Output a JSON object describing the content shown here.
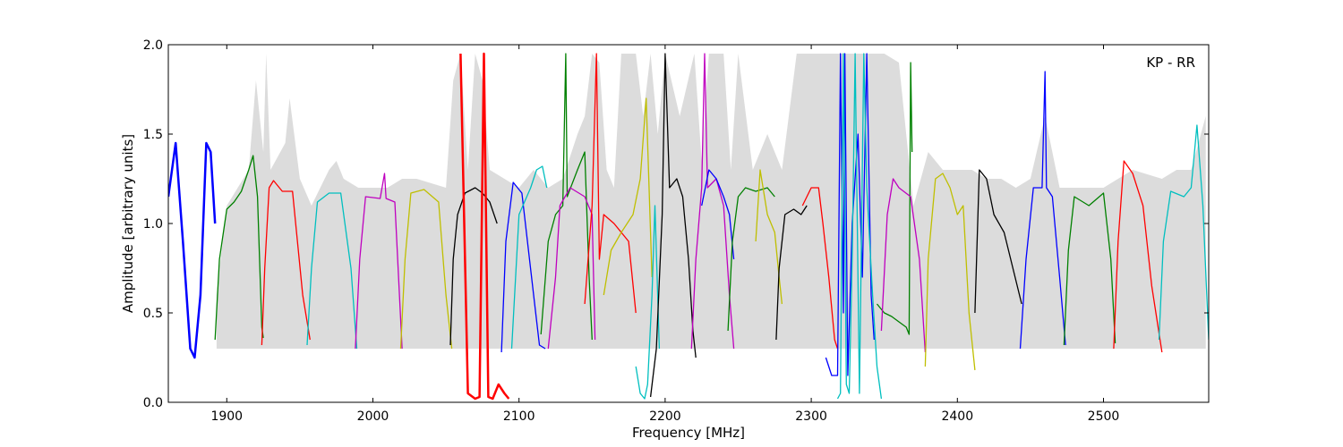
{
  "chart_data": {
    "type": "line",
    "title": "",
    "annotation": "KP - RR",
    "xlabel": "Frequency [MHz]",
    "ylabel": "Amplitude [arbitrary units]",
    "xlim": [
      1860,
      2572
    ],
    "ylim": [
      0.0,
      2.0
    ],
    "xticks": [
      1900,
      2000,
      2100,
      2200,
      2300,
      2400,
      2500
    ],
    "xtick_labels": [
      "1900",
      "2000",
      "2100",
      "2200",
      "2300",
      "2400",
      "2500"
    ],
    "yticks": [
      0.0,
      0.5,
      1.0,
      1.5,
      2.0
    ],
    "ytick_labels": [
      "0.0",
      "0.5",
      "1.0",
      "1.5",
      "2.0"
    ],
    "grid": false,
    "legend": "none",
    "background_band": {
      "color": "#c0c0c0",
      "x": [
        1893,
        1900,
        1915,
        1920,
        1925,
        1927,
        1930,
        1940,
        1943,
        1950,
        1958,
        1970,
        1975,
        1980,
        1990,
        2010,
        2020,
        2030,
        2050,
        2055,
        2060,
        2065,
        2070,
        2075,
        2080,
        2090,
        2100,
        2110,
        2120,
        2130,
        2140,
        2145,
        2150,
        2155,
        2160,
        2165,
        2170,
        2180,
        2185,
        2190,
        2195,
        2200,
        2210,
        2220,
        2225,
        2230,
        2240,
        2245,
        2250,
        2260,
        2270,
        2280,
        2290,
        2300,
        2310,
        2315,
        2320,
        2325,
        2330,
        2335,
        2340,
        2345,
        2350,
        2360,
        2370,
        2380,
        2390,
        2400,
        2410,
        2420,
        2430,
        2440,
        2450,
        2460,
        2470,
        2480,
        2500,
        2520,
        2540,
        2550,
        2560,
        2570
      ],
      "y": [
        0.6,
        1.1,
        1.3,
        1.8,
        1.4,
        1.95,
        1.3,
        1.45,
        1.7,
        1.25,
        1.1,
        1.3,
        1.35,
        1.25,
        1.2,
        1.2,
        1.25,
        1.25,
        1.2,
        1.8,
        1.95,
        1.3,
        1.95,
        1.8,
        1.3,
        1.25,
        1.2,
        1.3,
        1.2,
        1.25,
        1.5,
        1.6,
        1.95,
        1.9,
        1.3,
        1.2,
        1.95,
        1.95,
        1.6,
        1.95,
        1.5,
        1.95,
        1.6,
        1.95,
        1.35,
        1.95,
        1.95,
        1.3,
        1.95,
        1.3,
        1.5,
        1.3,
        1.95,
        1.95,
        1.95,
        1.95,
        1.95,
        1.95,
        1.95,
        1.95,
        1.95,
        1.95,
        1.95,
        1.9,
        1.1,
        1.4,
        1.3,
        1.3,
        1.3,
        1.25,
        1.25,
        1.2,
        1.25,
        1.6,
        1.2,
        1.2,
        1.2,
        1.3,
        1.25,
        1.3,
        1.3,
        1.6
      ]
    },
    "series": [
      {
        "color": "#0000ff",
        "x": [
          1860,
          1865,
          1870,
          1875,
          1878,
          1882,
          1886,
          1889,
          1892
        ],
        "y": [
          1.15,
          1.45,
          0.9,
          0.3,
          0.25,
          0.6,
          1.45,
          1.4,
          1.0
        ]
      },
      {
        "color": "#008000",
        "x": [
          1892,
          1895,
          1900,
          1905,
          1910,
          1915,
          1918,
          1921,
          1924,
          1925
        ],
        "y": [
          0.35,
          0.8,
          1.08,
          1.12,
          1.18,
          1.3,
          1.38,
          1.15,
          0.42,
          0.36
        ]
      },
      {
        "color": "#ff0000",
        "x": [
          1924,
          1926,
          1929,
          1932,
          1938,
          1945,
          1952,
          1957
        ],
        "y": [
          0.32,
          0.75,
          1.2,
          1.24,
          1.18,
          1.18,
          0.6,
          0.35
        ]
      },
      {
        "color": "#00bfbf",
        "x": [
          1955,
          1958,
          1962,
          1970,
          1978,
          1985,
          1989
        ],
        "y": [
          0.32,
          0.75,
          1.12,
          1.17,
          1.17,
          0.75,
          0.3
        ]
      },
      {
        "color": "#bf00bf",
        "x": [
          1988,
          1991,
          1995,
          2005,
          2008,
          2009,
          2015,
          2020
        ],
        "y": [
          0.3,
          0.8,
          1.15,
          1.14,
          1.28,
          1.14,
          1.12,
          0.3
        ]
      },
      {
        "color": "#bfbf00",
        "x": [
          2019,
          2022,
          2026,
          2035,
          2045,
          2050,
          2054
        ],
        "y": [
          0.3,
          0.8,
          1.17,
          1.19,
          1.12,
          0.6,
          0.3
        ]
      },
      {
        "color": "#000000",
        "x": [
          2053,
          2055,
          2058,
          2063,
          2070,
          2075,
          2080,
          2085
        ],
        "y": [
          0.32,
          0.8,
          1.05,
          1.17,
          1.2,
          1.17,
          1.12,
          1.0
        ]
      },
      {
        "color": "#ff0000",
        "x": [
          2060,
          2065,
          2070,
          2073,
          2076,
          2079,
          2082,
          2086,
          2090,
          2093
        ],
        "y": [
          1.95,
          0.05,
          0.02,
          0.03,
          1.95,
          0.03,
          0.02,
          0.1,
          0.05,
          0.02
        ]
      },
      {
        "color": "#0000ff",
        "x": [
          2088,
          2091,
          2096,
          2102,
          2110,
          2114,
          2118
        ],
        "y": [
          0.28,
          0.9,
          1.23,
          1.17,
          0.6,
          0.32,
          0.3
        ]
      },
      {
        "color": "#00bfbf",
        "x": [
          2095,
          2100,
          2108,
          2112,
          2116,
          2119
        ],
        "y": [
          0.3,
          1.05,
          1.2,
          1.3,
          1.32,
          1.2
        ]
      },
      {
        "color": "#008000",
        "x": [
          2115,
          2120,
          2125,
          2130,
          2132,
          2133,
          2140,
          2145,
          2148,
          2150
        ],
        "y": [
          0.38,
          0.9,
          1.05,
          1.1,
          1.95,
          1.15,
          1.3,
          1.4,
          0.7,
          0.35
        ]
      },
      {
        "color": "#bf00bf",
        "x": [
          2120,
          2125,
          2128,
          2135,
          2145,
          2150,
          2152
        ],
        "y": [
          0.3,
          0.7,
          1.1,
          1.2,
          1.15,
          1.05,
          0.35
        ]
      },
      {
        "color": "#ff0000",
        "x": [
          2145,
          2150,
          2153,
          2155,
          2158,
          2165,
          2175,
          2180
        ],
        "y": [
          0.55,
          1.1,
          1.95,
          0.8,
          1.05,
          1.0,
          0.9,
          0.5
        ]
      },
      {
        "color": "#bfbf00",
        "x": [
          2158,
          2163,
          2170,
          2178,
          2183,
          2187,
          2191
        ],
        "y": [
          0.6,
          0.85,
          0.95,
          1.05,
          1.25,
          1.7,
          0.7
        ]
      },
      {
        "color": "#00bfbf",
        "x": [
          2180,
          2183,
          2186,
          2188,
          2191,
          2193,
          2196
        ],
        "y": [
          0.2,
          0.05,
          0.02,
          0.1,
          0.6,
          1.1,
          0.3
        ]
      },
      {
        "color": "#000000",
        "x": [
          2190,
          2194,
          2198,
          2200,
          2203,
          2208,
          2212,
          2216,
          2219,
          2221
        ],
        "y": [
          0.03,
          0.3,
          1.05,
          1.95,
          1.2,
          1.25,
          1.15,
          0.8,
          0.4,
          0.25
        ]
      },
      {
        "color": "#bf00bf",
        "x": [
          2218,
          2221,
          2225,
          2227,
          2229,
          2235,
          2240,
          2244,
          2247
        ],
        "y": [
          0.3,
          0.8,
          1.2,
          1.95,
          1.2,
          1.25,
          1.1,
          0.6,
          0.3
        ]
      },
      {
        "color": "#0000ff",
        "x": [
          2225,
          2230,
          2235,
          2240,
          2244,
          2247
        ],
        "y": [
          1.1,
          1.3,
          1.25,
          1.15,
          1.05,
          0.8
        ]
      },
      {
        "color": "#008000",
        "x": [
          2243,
          2246,
          2250,
          2255,
          2262,
          2270,
          2275
        ],
        "y": [
          0.4,
          0.9,
          1.15,
          1.2,
          1.18,
          1.2,
          1.15
        ]
      },
      {
        "color": "#bfbf00",
        "x": [
          2262,
          2265,
          2270,
          2275,
          2278,
          2280
        ],
        "y": [
          0.9,
          1.3,
          1.05,
          0.95,
          0.7,
          0.55
        ]
      },
      {
        "color": "#000000",
        "x": [
          2276,
          2278,
          2282,
          2288,
          2293,
          2297
        ],
        "y": [
          0.35,
          0.75,
          1.05,
          1.08,
          1.05,
          1.1
        ]
      },
      {
        "color": "#ff0000",
        "x": [
          2294,
          2300,
          2305,
          2308,
          2312,
          2316,
          2318
        ],
        "y": [
          1.1,
          1.2,
          1.2,
          1.0,
          0.7,
          0.35,
          0.3
        ]
      },
      {
        "color": "#0000ff",
        "x": [
          2310,
          2314,
          2318,
          2320,
          2322,
          2323,
          2325,
          2328,
          2332,
          2335,
          2338,
          2341,
          2343
        ],
        "y": [
          0.25,
          0.15,
          0.15,
          1.95,
          0.5,
          1.95,
          0.15,
          1.0,
          1.5,
          0.7,
          1.95,
          0.6,
          0.35
        ]
      },
      {
        "color": "#00bfbf",
        "x": [
          2318,
          2320,
          2322,
          2324,
          2326,
          2328,
          2330,
          2333,
          2336,
          2338,
          2342,
          2345,
          2348
        ],
        "y": [
          0.02,
          0.05,
          1.95,
          0.1,
          0.05,
          0.8,
          1.95,
          0.05,
          1.95,
          1.2,
          0.6,
          0.2,
          0.02
        ]
      },
      {
        "color": "#008000",
        "x": [
          2345,
          2350,
          2355,
          2360,
          2365,
          2367,
          2368,
          2369
        ],
        "y": [
          0.55,
          0.5,
          0.48,
          0.45,
          0.42,
          0.38,
          1.9,
          1.4
        ]
      },
      {
        "color": "#bf00bf",
        "x": [
          2348,
          2352,
          2356,
          2360,
          2368,
          2374,
          2378
        ],
        "y": [
          0.4,
          1.05,
          1.25,
          1.2,
          1.15,
          0.8,
          0.28
        ]
      },
      {
        "color": "#bfbf00",
        "x": [
          2378,
          2380,
          2385,
          2390,
          2395,
          2400,
          2404,
          2408,
          2412
        ],
        "y": [
          0.2,
          0.8,
          1.25,
          1.28,
          1.2,
          1.05,
          1.1,
          0.5,
          0.18
        ]
      },
      {
        "color": "#000000",
        "x": [
          2412,
          2415,
          2420,
          2425,
          2432,
          2438,
          2444
        ],
        "y": [
          0.5,
          1.3,
          1.25,
          1.05,
          0.95,
          0.75,
          0.55
        ]
      },
      {
        "color": "#0000ff",
        "x": [
          2443,
          2447,
          2452,
          2458,
          2460,
          2461,
          2465,
          2470,
          2474
        ],
        "y": [
          0.3,
          0.8,
          1.2,
          1.2,
          1.85,
          1.2,
          1.15,
          0.7,
          0.32
        ]
      },
      {
        "color": "#008000",
        "x": [
          2473,
          2476,
          2480,
          2490,
          2500,
          2505,
          2508
        ],
        "y": [
          0.32,
          0.85,
          1.15,
          1.1,
          1.17,
          0.8,
          0.33
        ]
      },
      {
        "color": "#ff0000",
        "x": [
          2507,
          2510,
          2514,
          2520,
          2527,
          2533,
          2540
        ],
        "y": [
          0.3,
          0.9,
          1.35,
          1.28,
          1.1,
          0.65,
          0.28
        ]
      },
      {
        "color": "#00bfbf",
        "x": [
          2538,
          2541,
          2546,
          2555,
          2560,
          2564,
          2568,
          2572
        ],
        "y": [
          0.35,
          0.9,
          1.18,
          1.15,
          1.2,
          1.55,
          1.1,
          0.35
        ]
      }
    ]
  }
}
